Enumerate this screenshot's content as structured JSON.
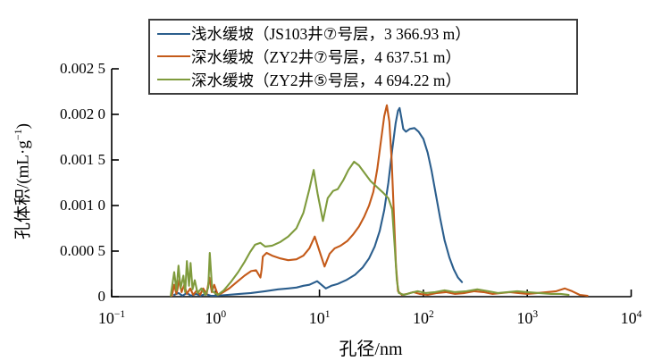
{
  "figure": {
    "background": "#ffffff",
    "axis_color": "#000000",
    "legend_border_color": "#3d3d3d"
  },
  "axes": {
    "x": {
      "label": "孔径/nm",
      "scale": "log",
      "ticks": [
        {
          "base": "10",
          "exp": "−1",
          "value": 0.1
        },
        {
          "base": "10",
          "exp": "0",
          "value": 1
        },
        {
          "base": "10",
          "exp": "1",
          "value": 10
        },
        {
          "base": "10",
          "exp": "2",
          "value": 100
        },
        {
          "base": "10",
          "exp": "3",
          "value": 1000
        },
        {
          "base": "10",
          "exp": "4",
          "value": 10000
        }
      ]
    },
    "y": {
      "label_prefix": "孔体积/(mL·g",
      "label_sup": "−1",
      "label_suffix": ")",
      "tick_labels": [
        "0",
        "0.000 5",
        "0.001 0",
        "0.001 5",
        "0.002 0",
        "0.002 5"
      ],
      "tick_values": [
        0,
        0.0005,
        0.001,
        0.0015,
        0.002,
        0.0025
      ]
    }
  },
  "chart_data": {
    "type": "line",
    "title": "",
    "xlabel": "孔径/nm",
    "ylabel": "孔体积/(mL·g−1)",
    "x_scale": "log",
    "xlim": [
      0.1,
      10000
    ],
    "ylim": [
      0,
      0.0025
    ],
    "grid": false,
    "legend_position": "top",
    "series": [
      {
        "name": "浅水缓坡（JS103井⑦号层，3 366.93 m）",
        "color": "#2b5e8d",
        "points": [
          [
            0.4,
            2e-05
          ],
          [
            0.44,
            4e-05
          ],
          [
            0.48,
            1e-05
          ],
          [
            0.53,
            4e-05
          ],
          [
            0.58,
            1e-05
          ],
          [
            0.65,
            3e-05
          ],
          [
            0.72,
            1e-05
          ],
          [
            0.8,
            3e-05
          ],
          [
            0.9,
            1e-05
          ],
          [
            1.0,
            1e-05
          ],
          [
            1.3,
            2e-05
          ],
          [
            1.7,
            3e-05
          ],
          [
            2.2,
            4e-05
          ],
          [
            3.0,
            6e-05
          ],
          [
            4.0,
            8e-05
          ],
          [
            5.0,
            9e-05
          ],
          [
            6.0,
            0.0001
          ],
          [
            7.0,
            0.00012
          ],
          [
            8.0,
            0.00013
          ],
          [
            9.5,
            0.00017
          ],
          [
            11.5,
            9e-05
          ],
          [
            13.0,
            0.00012
          ],
          [
            15.0,
            0.00014
          ],
          [
            18.0,
            0.00018
          ],
          [
            22.0,
            0.00024
          ],
          [
            26.0,
            0.00032
          ],
          [
            30.0,
            0.00042
          ],
          [
            34.0,
            0.00055
          ],
          [
            38.0,
            0.00072
          ],
          [
            42.0,
            0.00095
          ],
          [
            46.0,
            0.00125
          ],
          [
            50.0,
            0.0016
          ],
          [
            54.0,
            0.0019
          ],
          [
            57.0,
            0.00204
          ],
          [
            59.0,
            0.00207
          ],
          [
            61.5,
            0.00196
          ],
          [
            64.0,
            0.00184
          ],
          [
            68.0,
            0.00181
          ],
          [
            74.0,
            0.00184
          ],
          [
            82.0,
            0.00185
          ],
          [
            90.0,
            0.00181
          ],
          [
            100.0,
            0.00173
          ],
          [
            110.0,
            0.00158
          ],
          [
            120.0,
            0.00138
          ],
          [
            132.0,
            0.00112
          ],
          [
            145.0,
            0.00086
          ],
          [
            160.0,
            0.00062
          ],
          [
            178.0,
            0.00043
          ],
          [
            196.0,
            0.0003
          ],
          [
            215.0,
            0.00021
          ],
          [
            235.0,
            0.00016
          ]
        ]
      },
      {
        "name": "深水缓坡（ZY2井⑦号层，4 637.51 m）",
        "color": "#c45a19",
        "points": [
          [
            0.38,
            1e-05
          ],
          [
            0.4,
            0.00013
          ],
          [
            0.42,
            3e-05
          ],
          [
            0.45,
            0.00019
          ],
          [
            0.47,
            5e-05
          ],
          [
            0.5,
            0.00013
          ],
          [
            0.53,
            3e-05
          ],
          [
            0.57,
            9e-05
          ],
          [
            0.61,
            2e-05
          ],
          [
            0.66,
            7e-05
          ],
          [
            0.71,
            2e-05
          ],
          [
            0.76,
            9e-05
          ],
          [
            0.82,
            3e-05
          ],
          [
            0.87,
            0.00021
          ],
          [
            0.92,
            5e-05
          ],
          [
            0.97,
            0.00013
          ],
          [
            1.05,
            2e-05
          ],
          [
            1.15,
            4e-05
          ],
          [
            1.35,
            9e-05
          ],
          [
            1.6,
            0.00016
          ],
          [
            1.9,
            0.00023
          ],
          [
            2.2,
            0.00028
          ],
          [
            2.45,
            0.00029
          ],
          [
            2.7,
            0.00021
          ],
          [
            2.78,
            0.0003
          ],
          [
            2.85,
            0.00044
          ],
          [
            3.1,
            0.00048
          ],
          [
            3.5,
            0.00045
          ],
          [
            4.2,
            0.00042
          ],
          [
            5.0,
            0.0004
          ],
          [
            6.0,
            0.00041
          ],
          [
            7.0,
            0.00045
          ],
          [
            8.0,
            0.00053
          ],
          [
            9.0,
            0.00066
          ],
          [
            10.0,
            0.0005
          ],
          [
            11.2,
            0.00033
          ],
          [
            12.5,
            0.00047
          ],
          [
            14.0,
            0.00053
          ],
          [
            16.0,
            0.00056
          ],
          [
            18.5,
            0.00061
          ],
          [
            21.0,
            0.00068
          ],
          [
            24.0,
            0.00077
          ],
          [
            27.0,
            0.00088
          ],
          [
            30.0,
            0.001
          ],
          [
            33.0,
            0.00115
          ],
          [
            36.0,
            0.0014
          ],
          [
            39.0,
            0.0017
          ],
          [
            42.0,
            0.00198
          ],
          [
            44.5,
            0.0021
          ],
          [
            47.0,
            0.00192
          ],
          [
            49.5,
            0.0015
          ],
          [
            52.0,
            0.0009
          ],
          [
            54.5,
            0.00035
          ],
          [
            57.0,
            6e-05
          ],
          [
            62.0,
            2e-05
          ],
          [
            70.0,
            3e-05
          ],
          [
            80.0,
            5e-05
          ],
          [
            92.0,
            3e-05
          ],
          [
            110.0,
            2e-05
          ],
          [
            135.0,
            4e-05
          ],
          [
            165.0,
            5e-05
          ],
          [
            200.0,
            3e-05
          ],
          [
            250.0,
            4e-05
          ],
          [
            310.0,
            6e-05
          ],
          [
            380.0,
            5e-05
          ],
          [
            460.0,
            3e-05
          ],
          [
            560.0,
            4e-05
          ],
          [
            680.0,
            5e-05
          ],
          [
            820.0,
            4e-05
          ],
          [
            1000.0,
            3e-05
          ],
          [
            1250.0,
            4e-05
          ],
          [
            1550.0,
            5e-05
          ],
          [
            1900.0,
            6e-05
          ],
          [
            2300.0,
            9e-05
          ],
          [
            2700.0,
            6e-05
          ],
          [
            3200.0,
            2e-05
          ],
          [
            3800.0,
            1e-05
          ]
        ]
      },
      {
        "name": "深水缓坡（ZY2井⑤号层，4 694.22 m）",
        "color": "#7f9b3d",
        "points": [
          [
            0.37,
            1e-05
          ],
          [
            0.4,
            0.00027
          ],
          [
            0.42,
            7e-05
          ],
          [
            0.44,
            0.00034
          ],
          [
            0.46,
            9e-05
          ],
          [
            0.49,
            0.00023
          ],
          [
            0.51,
            5e-05
          ],
          [
            0.53,
            0.00039
          ],
          [
            0.555,
            0.00012
          ],
          [
            0.575,
            0.00037
          ],
          [
            0.6,
            8e-05
          ],
          [
            0.63,
            0.00018
          ],
          [
            0.67,
            4e-05
          ],
          [
            0.73,
            9e-05
          ],
          [
            0.8,
            2e-05
          ],
          [
            0.85,
            0.0001
          ],
          [
            0.88,
            0.00048
          ],
          [
            0.93,
            6e-05
          ],
          [
            1.05,
            2e-05
          ],
          [
            1.2,
            7e-05
          ],
          [
            1.4,
            0.00016
          ],
          [
            1.65,
            0.00027
          ],
          [
            1.9,
            0.00038
          ],
          [
            2.15,
            0.00049
          ],
          [
            2.4,
            0.00057
          ],
          [
            2.7,
            0.00059
          ],
          [
            3.0,
            0.00055
          ],
          [
            3.5,
            0.00056
          ],
          [
            4.2,
            0.0006
          ],
          [
            5.0,
            0.00066
          ],
          [
            6.0,
            0.00075
          ],
          [
            7.0,
            0.00092
          ],
          [
            8.0,
            0.00118
          ],
          [
            8.8,
            0.00139
          ],
          [
            9.6,
            0.00113
          ],
          [
            10.8,
            0.00083
          ],
          [
            12.0,
            0.00108
          ],
          [
            13.5,
            0.00116
          ],
          [
            15.0,
            0.00118
          ],
          [
            17.0,
            0.00128
          ],
          [
            19.0,
            0.00139
          ],
          [
            21.5,
            0.00148
          ],
          [
            24.0,
            0.00144
          ],
          [
            27.0,
            0.00136
          ],
          [
            31.0,
            0.00127
          ],
          [
            36.0,
            0.0012
          ],
          [
            41.0,
            0.00114
          ],
          [
            46.0,
            0.00108
          ],
          [
            50.0,
            0.00096
          ],
          [
            53.0,
            0.00055
          ],
          [
            55.5,
            0.00018
          ],
          [
            58.0,
            4e-05
          ],
          [
            65.0,
            2e-05
          ],
          [
            75.0,
            4e-05
          ],
          [
            88.0,
            6e-05
          ],
          [
            105.0,
            4e-05
          ],
          [
            130.0,
            5e-05
          ],
          [
            160.0,
            7e-05
          ],
          [
            200.0,
            5e-05
          ],
          [
            260.0,
            6e-05
          ],
          [
            330.0,
            8e-05
          ],
          [
            420.0,
            6e-05
          ],
          [
            520.0,
            4e-05
          ],
          [
            650.0,
            5e-05
          ],
          [
            800.0,
            6e-05
          ],
          [
            1000.0,
            5e-05
          ],
          [
            1300.0,
            4e-05
          ],
          [
            1700.0,
            3e-05
          ],
          [
            2100.0,
            3e-05
          ],
          [
            2500.0,
            2e-05
          ]
        ]
      }
    ]
  }
}
